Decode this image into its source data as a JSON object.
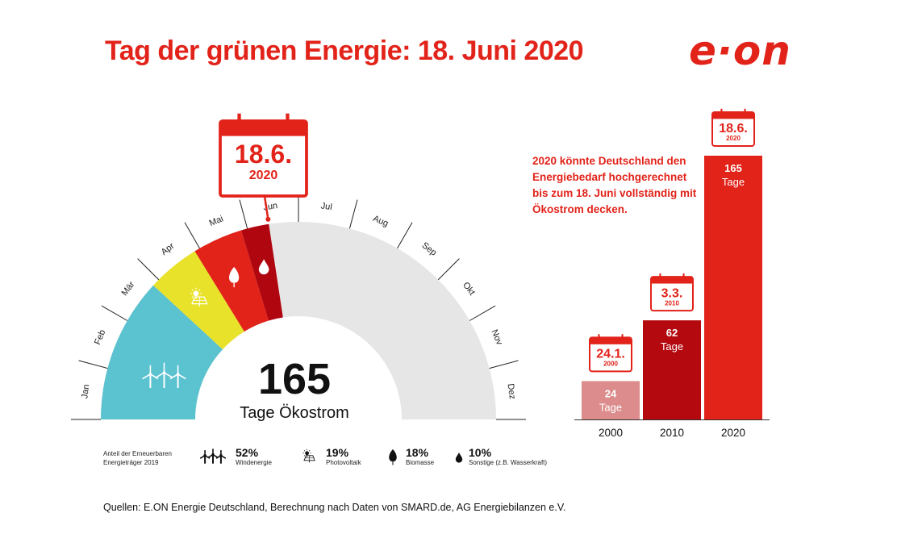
{
  "header": {
    "title": "Tag der grünen Energie: 18. Juni 2020",
    "logo_text": "e·on"
  },
  "colors": {
    "brand_red": "#e2231a",
    "wind": "#5bc2cf",
    "solar": "#e8e22a",
    "biomass": "#e2231a",
    "other": "#b0060f",
    "remainder": "#e6e6e6",
    "bar_2000": "#dc8c8c",
    "bar_2010": "#b3090f",
    "bar_2020": "#e2231a"
  },
  "gauge": {
    "calendar_day": "18.6.",
    "calendar_year": "2020",
    "big_number": "165",
    "big_label": "Tage Ökostrom"
  },
  "description": "2020 könnte Deutschland den Energiebedarf hochgerechnet bis zum 18. Juni vollständig mit Ökostrom decken.",
  "legend": {
    "caption": "Anteil der Erneuerbaren Energieträger 2019",
    "items": [
      {
        "pct": "52%",
        "label": "Windenergie",
        "icon": "wind-turbine-icon"
      },
      {
        "pct": "19%",
        "label": "Photovoltaik",
        "icon": "solar-panel-icon"
      },
      {
        "pct": "18%",
        "label": "Biomasse",
        "icon": "leaf-icon"
      },
      {
        "pct": "10%",
        "label": "Sonstige (z.B. Wasserkraft)",
        "icon": "water-drop-icon"
      }
    ]
  },
  "sources": "Quellen: E.ON Energie Deutschland, Berechnung nach Daten von SMARD.de, AG Energiebilanzen e.V.",
  "chart_data": [
    {
      "type": "pie",
      "variant": "half-donut",
      "months": [
        "Jan",
        "Feb",
        "Mär",
        "Apr",
        "Mai",
        "Jun",
        "Jul",
        "Aug",
        "Sep",
        "Okt",
        "Nov",
        "Dez"
      ],
      "total_days": 165,
      "marker_date": "18.6.2020",
      "segments": [
        {
          "name": "Windenergie",
          "share": 52,
          "color": "#5bc2cf",
          "icon": "wind-turbine-icon"
        },
        {
          "name": "Photovoltaik",
          "share": 19,
          "color": "#e8e22a",
          "icon": "solar-panel-icon"
        },
        {
          "name": "Biomasse",
          "share": 18,
          "color": "#e2231a",
          "icon": "leaf-icon"
        },
        {
          "name": "Sonstige (z.B. Wasserkraft)",
          "share": 10,
          "color": "#b0060f",
          "icon": "water-drop-icon"
        }
      ]
    },
    {
      "type": "bar",
      "categories": [
        "2000",
        "2010",
        "2020"
      ],
      "values": [
        24,
        62,
        165
      ],
      "value_labels": [
        "24",
        "62",
        "165"
      ],
      "unit_label": "Tage",
      "dates": [
        {
          "day": "24.1.",
          "year": "2000"
        },
        {
          "day": "3.3.",
          "year": "2010"
        },
        {
          "day": "18.6.",
          "year": "2020"
        }
      ],
      "colors": [
        "#dc8c8c",
        "#b3090f",
        "#e2231a"
      ]
    }
  ]
}
